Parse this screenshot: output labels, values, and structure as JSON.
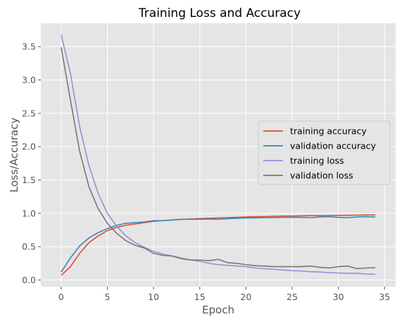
{
  "chart_data": {
    "type": "line",
    "title": "Training Loss and Accuracy",
    "xlabel": "Epoch",
    "ylabel": "Loss/Accuracy",
    "xlim": [
      -2.2,
      36.2
    ],
    "ylim": [
      -0.1,
      3.85
    ],
    "xticks": [
      0,
      5,
      10,
      15,
      20,
      25,
      30,
      35
    ],
    "yticks": [
      0.0,
      0.5,
      1.0,
      1.5,
      2.0,
      2.5,
      3.0,
      3.5
    ],
    "grid": true,
    "legend_position": "right",
    "x": [
      0,
      1,
      2,
      3,
      4,
      5,
      6,
      7,
      8,
      9,
      10,
      11,
      12,
      13,
      14,
      15,
      16,
      17,
      18,
      19,
      20,
      21,
      22,
      23,
      24,
      25,
      26,
      27,
      28,
      29,
      30,
      31,
      32,
      33,
      34
    ],
    "series": [
      {
        "name": "training accuracy",
        "color": "#E24A33",
        "values": [
          0.07,
          0.2,
          0.4,
          0.56,
          0.66,
          0.74,
          0.79,
          0.82,
          0.84,
          0.86,
          0.88,
          0.89,
          0.9,
          0.91,
          0.915,
          0.92,
          0.925,
          0.93,
          0.935,
          0.94,
          0.945,
          0.95,
          0.95,
          0.955,
          0.96,
          0.96,
          0.962,
          0.965,
          0.965,
          0.968,
          0.97,
          0.97,
          0.972,
          0.975,
          0.975
        ]
      },
      {
        "name": "validation accuracy",
        "color": "#348ABD",
        "values": [
          0.12,
          0.33,
          0.51,
          0.63,
          0.71,
          0.77,
          0.82,
          0.85,
          0.86,
          0.87,
          0.89,
          0.89,
          0.9,
          0.91,
          0.91,
          0.91,
          0.915,
          0.91,
          0.92,
          0.925,
          0.93,
          0.93,
          0.935,
          0.935,
          0.94,
          0.94,
          0.94,
          0.935,
          0.945,
          0.95,
          0.94,
          0.935,
          0.945,
          0.95,
          0.945
        ]
      },
      {
        "name": "training loss",
        "color": "#988ED5",
        "values": [
          3.68,
          3.1,
          2.3,
          1.72,
          1.3,
          1.0,
          0.81,
          0.66,
          0.56,
          0.49,
          0.43,
          0.39,
          0.36,
          0.33,
          0.3,
          0.28,
          0.25,
          0.23,
          0.22,
          0.21,
          0.2,
          0.18,
          0.17,
          0.16,
          0.15,
          0.14,
          0.135,
          0.125,
          0.12,
          0.11,
          0.105,
          0.1,
          0.1,
          0.09,
          0.085
        ]
      },
      {
        "name": "validation loss",
        "color": "#777777",
        "values": [
          3.49,
          2.7,
          1.93,
          1.4,
          1.07,
          0.85,
          0.7,
          0.59,
          0.52,
          0.48,
          0.4,
          0.37,
          0.36,
          0.32,
          0.3,
          0.3,
          0.29,
          0.31,
          0.26,
          0.25,
          0.23,
          0.215,
          0.21,
          0.2,
          0.2,
          0.2,
          0.2,
          0.21,
          0.19,
          0.18,
          0.2,
          0.21,
          0.17,
          0.18,
          0.185
        ]
      }
    ]
  }
}
